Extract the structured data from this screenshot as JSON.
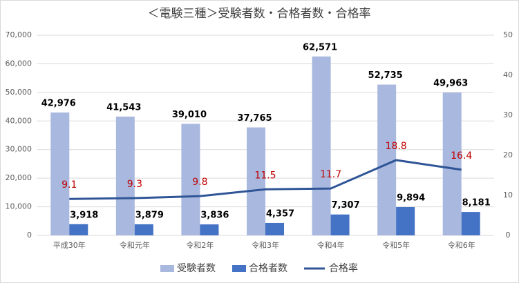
{
  "chart_data": {
    "type": "bar",
    "title": "＜電験三種＞受験者数・合格者数・合格率",
    "categories": [
      "平成30年",
      "令和元年",
      "令和2年",
      "令和3年",
      "令和4年",
      "令和5年",
      "令和6年"
    ],
    "series": [
      {
        "name": "受験者数",
        "color": "#a9b8de",
        "values": [
          42976,
          41543,
          39010,
          37765,
          62571,
          52735,
          49963
        ],
        "value_labels": [
          "42,976",
          "41,543",
          "39,010",
          "37,765",
          "62,571",
          "52,735",
          "49,963"
        ]
      },
      {
        "name": "合格者数",
        "color": "#4472c4",
        "values": [
          3918,
          3879,
          3836,
          4357,
          7307,
          9894,
          8181
        ],
        "value_labels": [
          "3,918",
          "3,879",
          "3,836",
          "4,357",
          "7,307",
          "9,894",
          "8,181"
        ]
      },
      {
        "name": "合格率",
        "type": "line",
        "axis": "y2",
        "color": "#2f5597",
        "label_color": "#c00000",
        "values": [
          9.1,
          9.3,
          9.8,
          11.5,
          11.7,
          18.8,
          16.4
        ]
      }
    ],
    "ylim": [
      0,
      70000
    ],
    "yticks": [
      0,
      {
        "value": 10000,
        "label": "10,000"
      },
      {
        "value": 20000,
        "label": "20,000"
      },
      {
        "value": 30000,
        "label": "30,000"
      },
      {
        "value": 40000,
        "label": "40,000"
      },
      {
        "value": 50000,
        "label": "50,000"
      },
      {
        "value": 60000,
        "label": "60,000"
      },
      {
        "value": 70000,
        "label": "70,000"
      }
    ],
    "y2lim": [
      0,
      50
    ],
    "y2ticks": [
      0,
      10,
      20,
      30,
      40,
      50
    ],
    "grid": true,
    "legend": "bottom"
  }
}
